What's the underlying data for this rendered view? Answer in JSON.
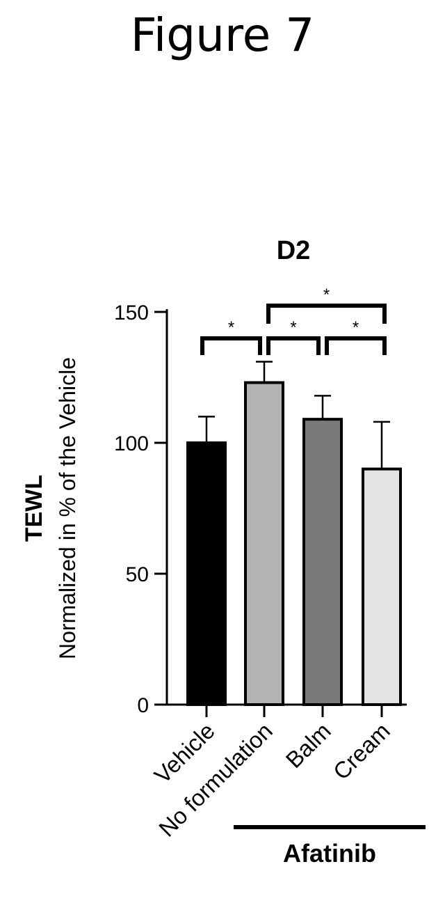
{
  "figure_title": "Figure 7",
  "chart_data": {
    "type": "bar",
    "title": "D2",
    "ylabel_line1": "TEWL",
    "ylabel_line2": "Normalized in % of the Vehicle",
    "xlabel": "",
    "ylim": [
      0,
      150
    ],
    "yticks": [
      0,
      50,
      100,
      150
    ],
    "categories": [
      "Vehicle",
      "No formulation",
      "Balm",
      "Cream"
    ],
    "values": [
      100,
      123,
      109,
      90
    ],
    "errors": [
      10,
      8,
      9,
      18
    ],
    "bar_fills": [
      "#000000",
      "#b4b4b4",
      "#7a7a7a",
      "#e4e4e4"
    ],
    "group_label": "Afatinib",
    "group_categories": [
      "No formulation",
      "Balm",
      "Cream"
    ],
    "significance": [
      {
        "from": "Vehicle",
        "to": "No formulation",
        "label": "*"
      },
      {
        "from": "No formulation",
        "to": "Balm",
        "label": "*"
      },
      {
        "from": "Balm",
        "to": "Cream",
        "label": "*"
      },
      {
        "from": "No formulation",
        "to": "Cream",
        "label": "*"
      }
    ]
  }
}
